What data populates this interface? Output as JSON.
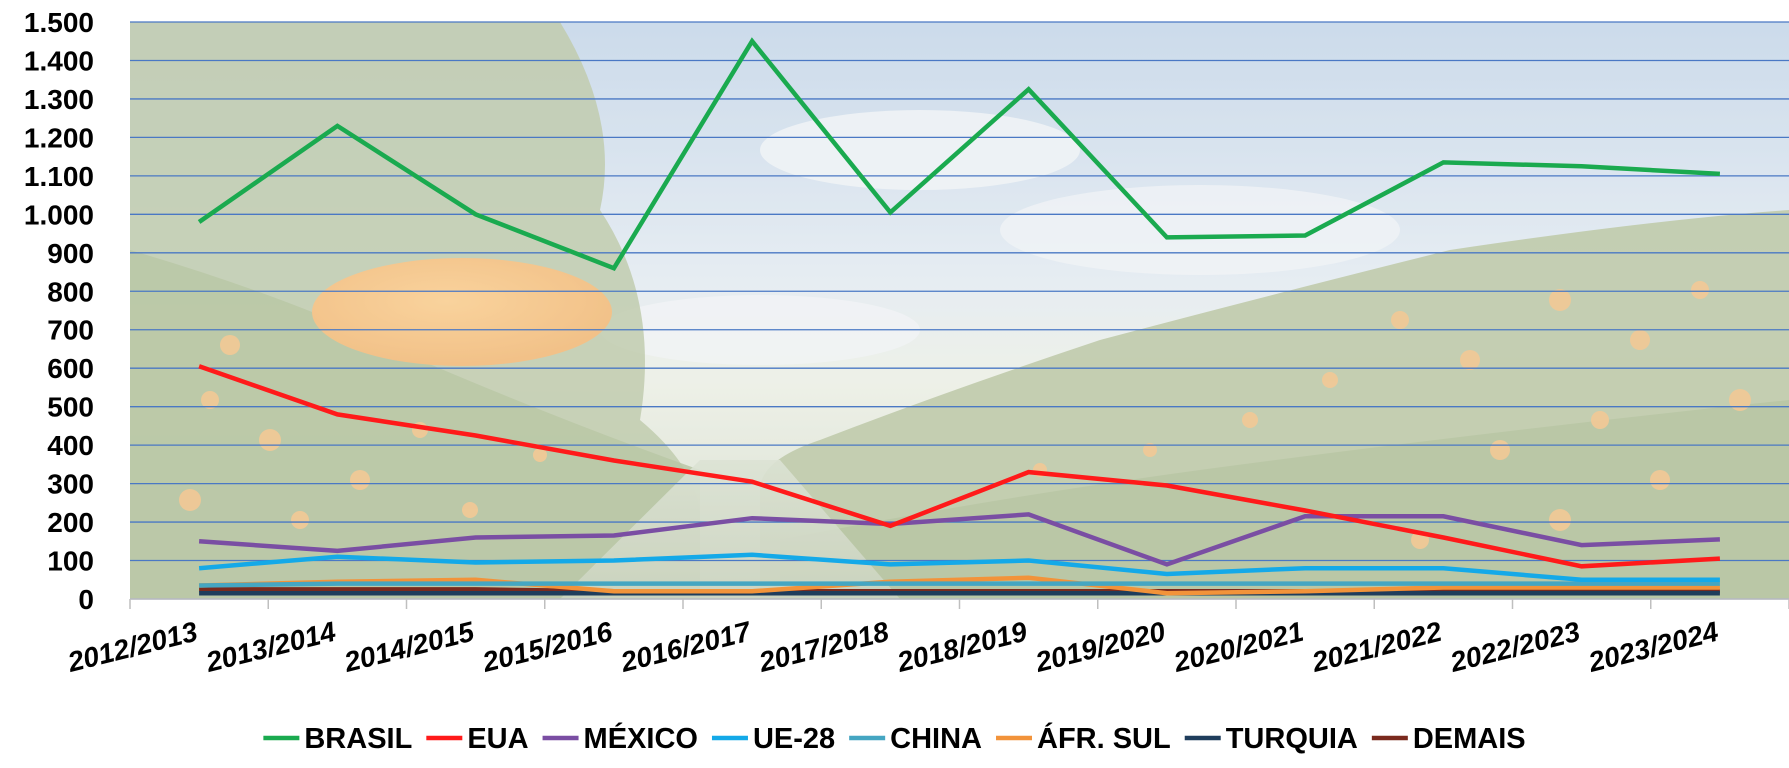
{
  "chart_data": {
    "type": "line",
    "title": "",
    "xlabel": "",
    "ylabel": "",
    "ylim": [
      0,
      1500
    ],
    "yticks": [
      0,
      100,
      200,
      300,
      400,
      500,
      600,
      700,
      800,
      900,
      1000,
      1100,
      1200,
      1300,
      1400,
      1500
    ],
    "ytick_labels": [
      "0",
      "100",
      "200",
      "300",
      "400",
      "500",
      "600",
      "700",
      "800",
      "900",
      "1.000",
      "1.100",
      "1.200",
      "1.300",
      "1.400",
      "1.500"
    ],
    "grid": true,
    "legend_position": "bottom",
    "background": "photograph of an orange orchard with a large orange fruit, faded behind the plot area",
    "categories": [
      "2012/2013",
      "2013/2014",
      "2014/2015",
      "2015/2016",
      "2016/2017",
      "2017/2018",
      "2018/2019",
      "2019/2020",
      "2020/2021",
      "2021/2022",
      "2022/2023",
      "2023/2024"
    ],
    "series": [
      {
        "name": "BRASIL",
        "color": "#1aaa4f",
        "values": [
          980,
          1230,
          1000,
          860,
          1450,
          1005,
          1325,
          940,
          945,
          1135,
          1125,
          1105
        ]
      },
      {
        "name": "EUA",
        "color": "#ff1a1a",
        "values": [
          605,
          480,
          425,
          360,
          305,
          190,
          330,
          295,
          230,
          160,
          85,
          105
        ]
      },
      {
        "name": "MÉXICO",
        "color": "#7a4ea3",
        "values": [
          150,
          125,
          160,
          165,
          210,
          195,
          220,
          90,
          215,
          215,
          140,
          155
        ]
      },
      {
        "name": "UE-28",
        "color": "#14a9e8",
        "values": [
          80,
          110,
          95,
          100,
          115,
          90,
          100,
          65,
          80,
          80,
          50,
          50
        ]
      },
      {
        "name": "CHINA",
        "color": "#45a6c2",
        "values": [
          35,
          40,
          40,
          40,
          40,
          40,
          40,
          40,
          40,
          40,
          40,
          40
        ]
      },
      {
        "name": "ÁFR. SUL",
        "color": "#f2933a",
        "values": [
          35,
          45,
          50,
          20,
          20,
          45,
          55,
          15,
          20,
          30,
          30,
          30
        ]
      },
      {
        "name": "TURQUIA",
        "color": "#1f3d5c",
        "values": [
          15,
          15,
          15,
          15,
          15,
          15,
          15,
          15,
          15,
          15,
          15,
          15
        ]
      },
      {
        "name": "DEMAIS",
        "color": "#7a2a1e",
        "values": [
          25,
          25,
          25,
          20,
          20,
          20,
          20,
          20,
          20,
          20,
          20,
          20
        ]
      }
    ]
  }
}
